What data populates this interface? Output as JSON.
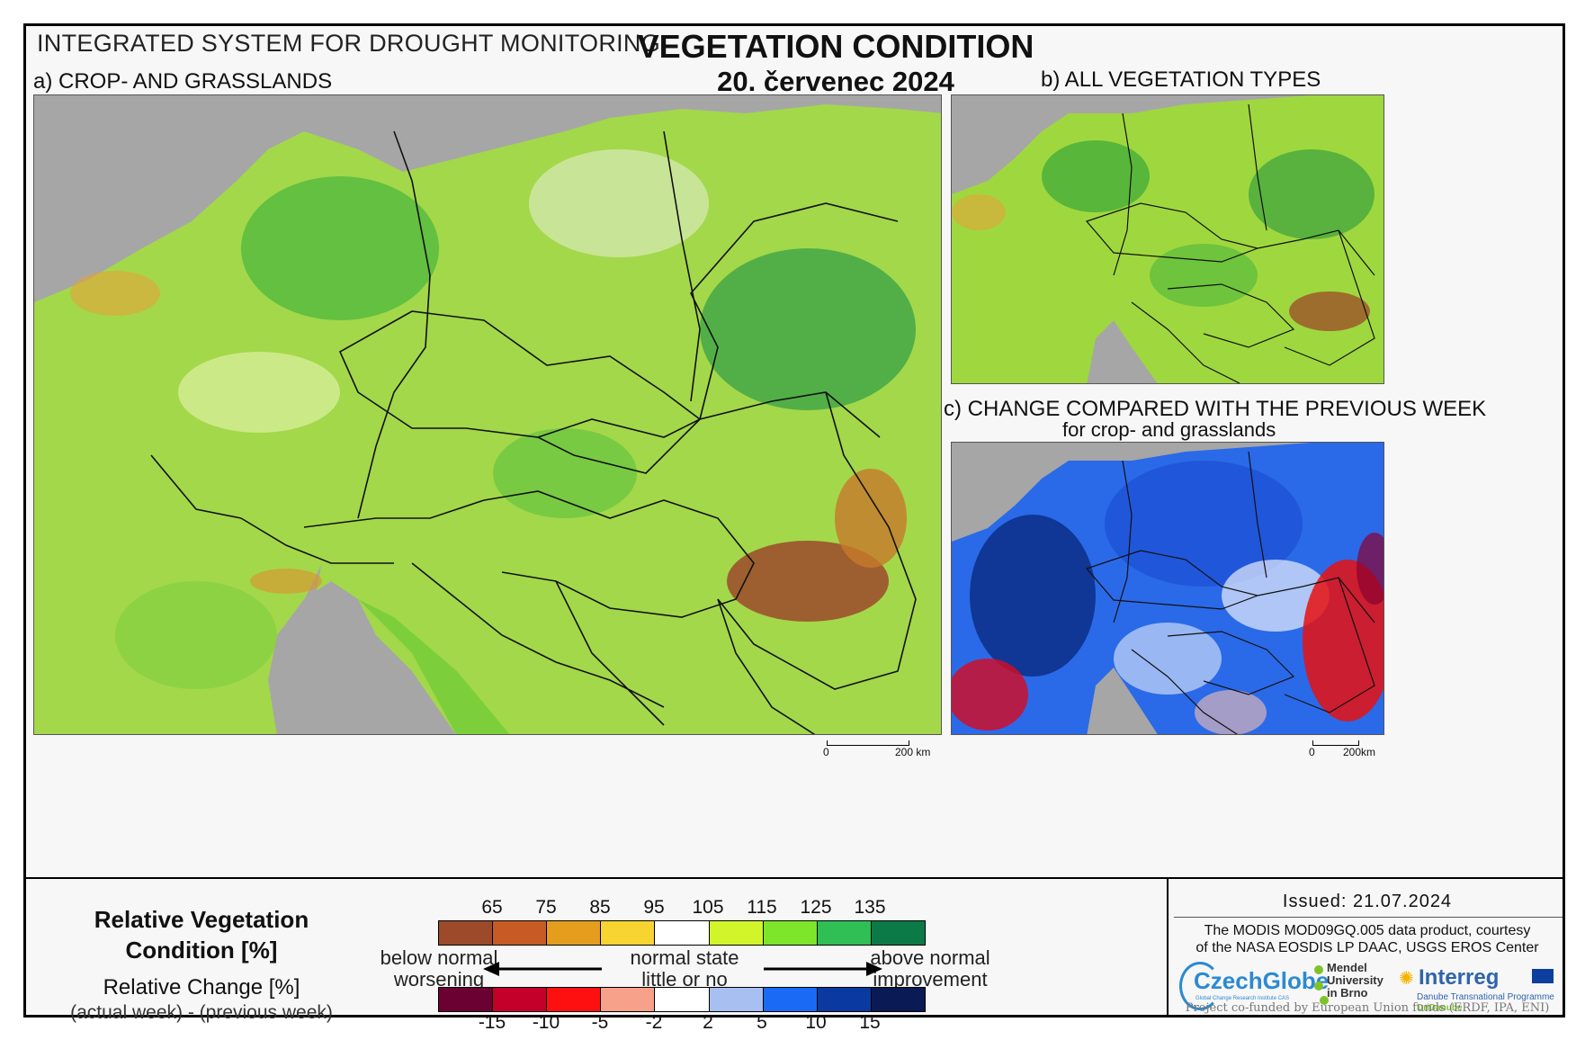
{
  "header": {
    "system_title": "INTEGRATED SYSTEM FOR DROUGHT MONITORING",
    "main_title": "VEGETATION CONDITION",
    "date": "20. červenec 2024"
  },
  "panels": {
    "a_label": "a) CROP- AND GRASSLANDS",
    "b_label": "b) ALL VEGETATION TYPES",
    "c_label": "c) CHANGE COMPARED WITH THE PREVIOUS WEEK",
    "c_sublabel": "for crop- and grasslands",
    "scale_a": {
      "zero": "0",
      "end": "200 km"
    },
    "scale_c": {
      "zero": "0",
      "end": "200km"
    }
  },
  "legend": {
    "title_line1": "Relative Vegetation",
    "title_line2": "Condition [%]",
    "change_title": "Relative Change [%]",
    "change_sub": "(actual week) - (previous week)",
    "condition_ticks": [
      "65",
      "75",
      "85",
      "95",
      "105",
      "115",
      "125",
      "135"
    ],
    "condition_colors": [
      "#9c4a2a",
      "#c75b24",
      "#e59d1d",
      "#f7d430",
      "#ffffff",
      "#d2f52a",
      "#7ee62a",
      "#2fbf55",
      "#0b7a46"
    ],
    "change_ticks": [
      "-15",
      "-10",
      "-5",
      "-2",
      "2",
      "5",
      "10",
      "15"
    ],
    "change_colors": [
      "#6b0032",
      "#c4002a",
      "#ff1010",
      "#f7a08a",
      "#ffffff",
      "#a8bff2",
      "#1a6af5",
      "#0a3aa0",
      "#0a1a55"
    ],
    "left_text_1": "below normal",
    "left_text_2": "worsening",
    "mid_text_1": "normal state",
    "mid_text_2": "little or no change",
    "right_text_1": "above normal",
    "right_text_2": "improvement"
  },
  "footer": {
    "issued": "Issued: 21.07.2024",
    "credit_1": "The MODIS MOD09GQ.005 data product, courtesy",
    "credit_2": "of the NASA EOSDIS LP DAAC, USGS EROS Center",
    "czechglobe": "CzechGlobe",
    "czechglobe_sub": "Global Change Research Institute CAS",
    "mendel_1": "Mendel",
    "mendel_2": "University",
    "mendel_3": "in Brno",
    "interreg": "Interreg",
    "interreg_sub_1": "Danube Transnational Programme",
    "interreg_sub_2": "DriDanube",
    "cofunded": "Project co-funded by European Union funds (ERDF, IPA, ENI)"
  }
}
